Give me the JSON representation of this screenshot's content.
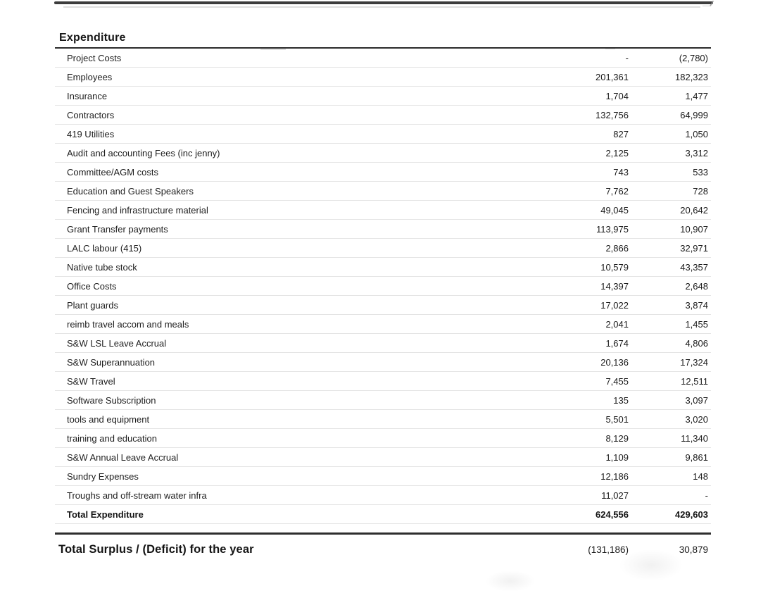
{
  "table": {
    "title": "Expenditure",
    "rows": [
      {
        "label": "Project Costs",
        "col1": "-",
        "col2": "(2,780)"
      },
      {
        "label": "Employees",
        "col1": "201,361",
        "col2": "182,323"
      },
      {
        "label": "Insurance",
        "col1": "1,704",
        "col2": "1,477"
      },
      {
        "label": "Contractors",
        "col1": "132,756",
        "col2": "64,999"
      },
      {
        "label": "419 Utilities",
        "col1": "827",
        "col2": "1,050"
      },
      {
        "label": "Audit and accounting Fees (inc jenny)",
        "col1": "2,125",
        "col2": "3,312"
      },
      {
        "label": "Committee/AGM costs",
        "col1": "743",
        "col2": "533"
      },
      {
        "label": "Education and Guest Speakers",
        "col1": "7,762",
        "col2": "728"
      },
      {
        "label": "Fencing and infrastructure material",
        "col1": "49,045",
        "col2": "20,642"
      },
      {
        "label": "Grant Transfer payments",
        "col1": "113,975",
        "col2": "10,907"
      },
      {
        "label": "LALC labour (415)",
        "col1": "2,866",
        "col2": "32,971"
      },
      {
        "label": "Native tube stock",
        "col1": "10,579",
        "col2": "43,357"
      },
      {
        "label": "Office Costs",
        "col1": "14,397",
        "col2": "2,648"
      },
      {
        "label": "Plant guards",
        "col1": "17,022",
        "col2": "3,874"
      },
      {
        "label": "reimb travel accom and meals",
        "col1": "2,041",
        "col2": "1,455"
      },
      {
        "label": "S&W LSL Leave Accrual",
        "col1": "1,674",
        "col2": "4,806"
      },
      {
        "label": "S&W Superannuation",
        "col1": "20,136",
        "col2": "17,324"
      },
      {
        "label": "S&W Travel",
        "col1": "7,455",
        "col2": "12,511"
      },
      {
        "label": "Software Subscription",
        "col1": "135",
        "col2": "3,097"
      },
      {
        "label": "tools and equipment",
        "col1": "5,501",
        "col2": "3,020"
      },
      {
        "label": "training and education",
        "col1": "8,129",
        "col2": "11,340"
      },
      {
        "label": "S&W Annual Leave Accrual",
        "col1": "1,109",
        "col2": "9,861"
      },
      {
        "label": "Sundry Expenses",
        "col1": "12,186",
        "col2": "148"
      },
      {
        "label": "Troughs and off-stream water infra",
        "col1": "11,027",
        "col2": "-"
      }
    ],
    "total_row": {
      "label": "Total Expenditure",
      "col1": "624,556",
      "col2": "429,603"
    }
  },
  "summary": {
    "label": "Total Surplus / (Deficit) for the year",
    "col1": "(131,186)",
    "col2": "30,879"
  },
  "colors": {
    "text": "#1f1f1f",
    "heavy_rule": "#2e2e2e",
    "row_divider": "#e4e4e4",
    "background": "#ffffff"
  }
}
